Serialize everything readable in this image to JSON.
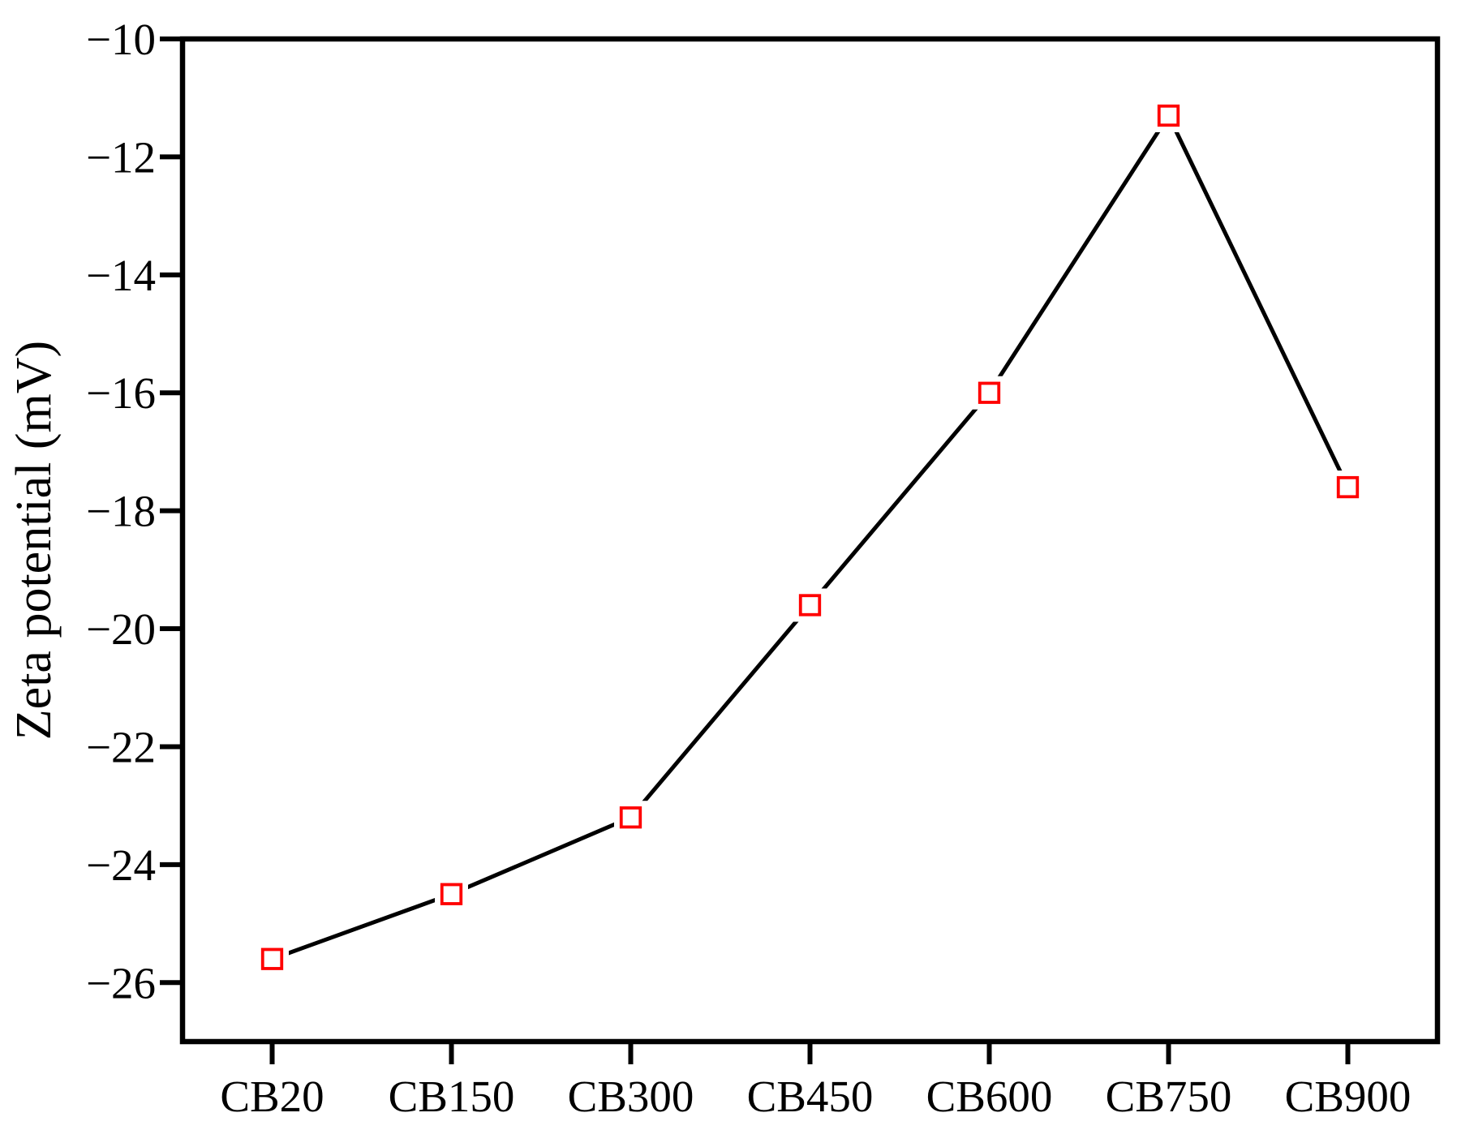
{
  "chart_data": {
    "type": "line",
    "title": "",
    "categories": [
      "CB20",
      "CB150",
      "CB300",
      "CB450",
      "CB600",
      "CB750",
      "CB900"
    ],
    "values": [
      -25.6,
      -24.5,
      -23.2,
      -19.6,
      -16.0,
      -11.3,
      -17.6
    ],
    "xlabel": "",
    "ylabel": "Zeta potential (mV)",
    "ylim": [
      -27,
      -10
    ],
    "yticks": [
      -10,
      -12,
      -14,
      -16,
      -18,
      -20,
      -22,
      -24,
      -26
    ],
    "ytick_labels": [
      "−10",
      "−12",
      "−14",
      "−16",
      "−18",
      "−20",
      "−22",
      "−24",
      "−26"
    ],
    "grid": false,
    "legend_position": "none",
    "marker": "open-square",
    "marker_color": "#FF0000",
    "marker_fill": "#FFFFFF",
    "line_color": "#000000",
    "axis_color": "#000000",
    "background_color": "#FFFFFF",
    "tick_direction": "out"
  }
}
